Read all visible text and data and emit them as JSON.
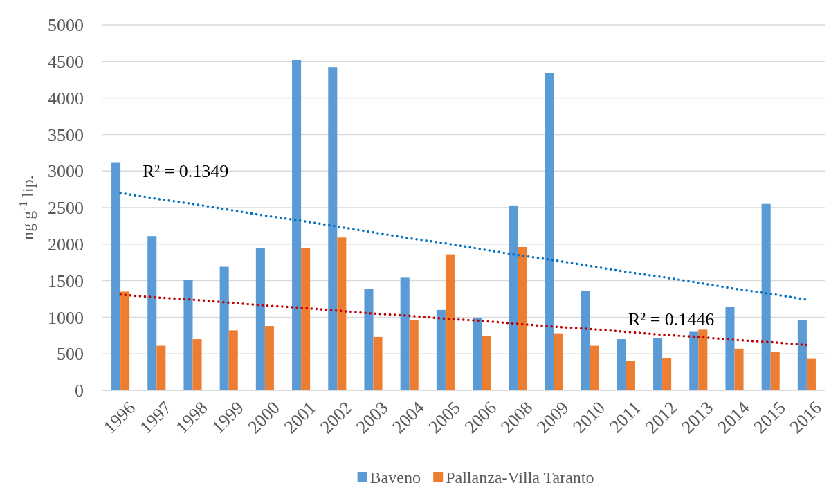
{
  "chart_data": {
    "type": "bar",
    "ylabel": "ng g$^{-1}$ lip.",
    "categories": [
      "1996",
      "1997",
      "1998",
      "1999",
      "2000",
      "2001",
      "2002",
      "2003",
      "2004",
      "2005",
      "2006",
      "2008",
      "2009",
      "2010",
      "2011",
      "2012",
      "2013",
      "2014",
      "2015",
      "2016"
    ],
    "series": [
      {
        "name": "Baveno",
        "color": "#5b9bd5",
        "values": [
          3120,
          2110,
          1510,
          1690,
          1950,
          4520,
          4420,
          1390,
          1540,
          1100,
          990,
          2530,
          4340,
          1360,
          700,
          710,
          800,
          1140,
          2550,
          960
        ]
      },
      {
        "name": "Pallanza-Villa Taranto",
        "color": "#ed7d31",
        "values": [
          1350,
          610,
          700,
          820,
          880,
          1950,
          2090,
          730,
          960,
          1860,
          740,
          1960,
          780,
          610,
          400,
          440,
          830,
          570,
          530,
          430
        ]
      },
      {
        "type": "line",
        "color": "#0070c0",
        "line_style": "dotted",
        "marker": "none",
        "values": [
          2700,
          2620,
          2550,
          2470,
          2390,
          2320,
          2240,
          2160,
          2080,
          2010,
          1930,
          1850,
          1780,
          1700,
          1620,
          1550,
          1470,
          1390,
          1320,
          1240
        ]
      },
      {
        "type": "line",
        "color": "#c00000",
        "line_style": "dotted",
        "marker": "none",
        "values": [
          1310,
          1270,
          1240,
          1200,
          1160,
          1130,
          1090,
          1050,
          1020,
          980,
          950,
          910,
          870,
          840,
          800,
          760,
          730,
          690,
          660,
          620
        ]
      }
    ],
    "annotations": [
      "R² = 0.1349",
      "R² = 0.1446"
    ],
    "ylim": [
      0,
      5000
    ],
    "yticks": [
      0,
      500,
      1000,
      1500,
      2000,
      2500,
      3000,
      3500,
      4000,
      4500,
      5000
    ],
    "grid": "y",
    "legend": "bottom"
  }
}
